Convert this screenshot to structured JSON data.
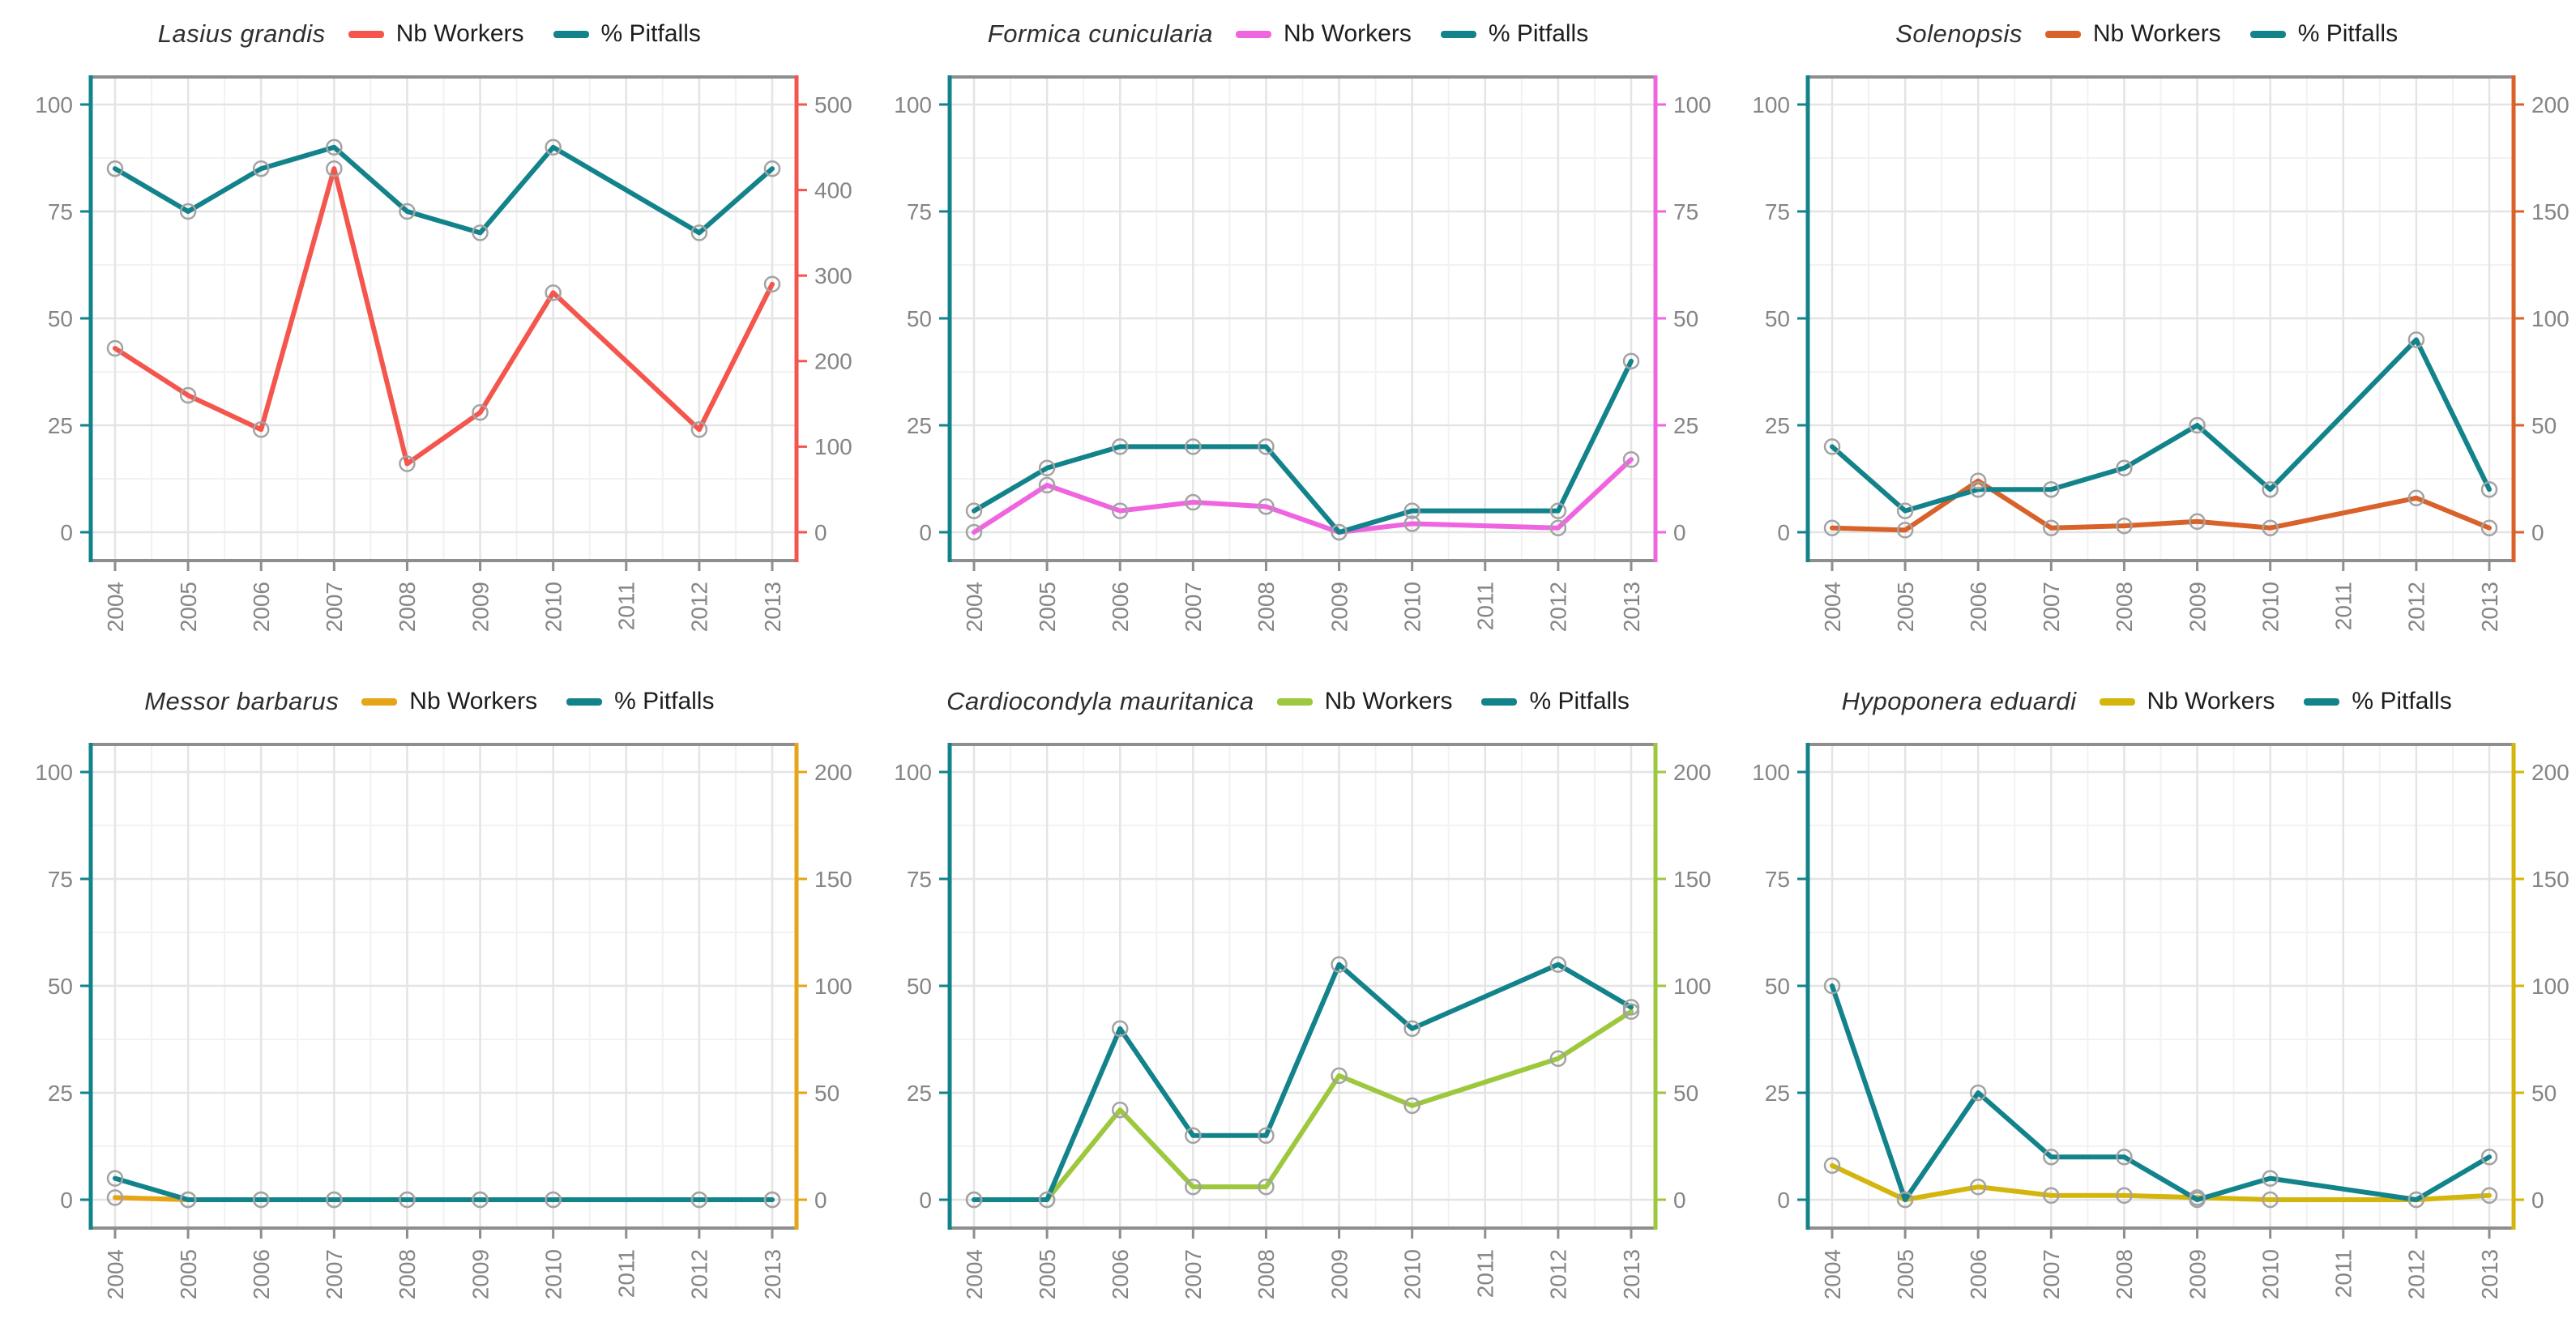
{
  "legend": {
    "nb_workers": "Nb Workers",
    "pitfalls": "% Pitfalls"
  },
  "axes": {
    "x_years": [
      2004,
      2005,
      2006,
      2007,
      2008,
      2009,
      2010,
      2011,
      2012,
      2013
    ],
    "left_ticks": [
      0,
      25,
      50,
      75,
      100
    ],
    "left_range": [
      0,
      100
    ]
  },
  "colors": {
    "pitfalls_teal": "#12838b",
    "axis_gray": "#8e8e8e",
    "tick_text": "#858585",
    "grid_major": "#e4e4e4",
    "grid_minor": "#f2f2f2",
    "marker_stroke": "#a3a3a3",
    "background": "#ffffff"
  },
  "chart_data": [
    {
      "type": "line",
      "title": "Lasius grandis",
      "x": [
        2004,
        2005,
        2006,
        2007,
        2008,
        2009,
        2010,
        2012,
        2013
      ],
      "right_axis": {
        "ticks": [
          0,
          100,
          200,
          300,
          400,
          500
        ],
        "range": [
          0,
          500
        ]
      },
      "series": [
        {
          "name": "Nb Workers",
          "axis": "right",
          "color": "#f4554d",
          "values": [
            215,
            160,
            120,
            425,
            80,
            140,
            280,
            120,
            290
          ]
        },
        {
          "name": "% Pitfalls",
          "axis": "left",
          "color": "#12838b",
          "values": [
            85,
            75,
            85,
            90,
            75,
            70,
            90,
            70,
            85
          ]
        }
      ]
    },
    {
      "type": "line",
      "title": "Formica cunicularia",
      "x": [
        2004,
        2005,
        2006,
        2007,
        2008,
        2009,
        2010,
        2012,
        2013
      ],
      "right_axis": {
        "ticks": [
          0,
          25,
          50,
          75,
          100
        ],
        "range": [
          0,
          100
        ]
      },
      "series": [
        {
          "name": "Nb Workers",
          "axis": "right",
          "color": "#ef65e0",
          "values": [
            0,
            11,
            5,
            7,
            6,
            0,
            2,
            1,
            17
          ]
        },
        {
          "name": "% Pitfalls",
          "axis": "left",
          "color": "#12838b",
          "values": [
            5,
            15,
            20,
            20,
            20,
            0,
            5,
            5,
            40
          ]
        }
      ]
    },
    {
      "type": "line",
      "title": "Solenopsis",
      "x": [
        2004,
        2005,
        2006,
        2007,
        2008,
        2009,
        2010,
        2012,
        2013
      ],
      "right_axis": {
        "ticks": [
          0,
          50,
          100,
          150,
          200
        ],
        "range": [
          0,
          200
        ]
      },
      "series": [
        {
          "name": "Nb Workers",
          "axis": "right",
          "color": "#d8622a",
          "values": [
            2,
            1,
            24,
            2,
            3,
            5,
            2,
            16,
            2
          ]
        },
        {
          "name": "% Pitfalls",
          "axis": "left",
          "color": "#12838b",
          "values": [
            20,
            5,
            10,
            10,
            15,
            25,
            10,
            45,
            10
          ]
        }
      ]
    },
    {
      "type": "line",
      "title": "Messor barbarus",
      "x": [
        2004,
        2005,
        2006,
        2007,
        2008,
        2009,
        2010,
        2012,
        2013
      ],
      "right_axis": {
        "ticks": [
          0,
          50,
          100,
          150,
          200
        ],
        "range": [
          0,
          200
        ]
      },
      "series": [
        {
          "name": "Nb Workers",
          "axis": "right",
          "color": "#e6a417",
          "values": [
            1,
            0,
            0,
            0,
            0,
            0,
            0,
            0,
            0
          ]
        },
        {
          "name": "% Pitfalls",
          "axis": "left",
          "color": "#12838b",
          "values": [
            5,
            0,
            0,
            0,
            0,
            0,
            0,
            0,
            0
          ]
        }
      ]
    },
    {
      "type": "line",
      "title": "Cardiocondyla mauritanica",
      "x": [
        2004,
        2005,
        2006,
        2007,
        2008,
        2009,
        2010,
        2012,
        2013
      ],
      "right_axis": {
        "ticks": [
          0,
          50,
          100,
          150,
          200
        ],
        "range": [
          0,
          200
        ]
      },
      "series": [
        {
          "name": "Nb Workers",
          "axis": "right",
          "color": "#9dc83e",
          "values": [
            0,
            0,
            42,
            6,
            6,
            58,
            44,
            66,
            88
          ]
        },
        {
          "name": "% Pitfalls",
          "axis": "left",
          "color": "#12838b",
          "values": [
            0,
            0,
            40,
            15,
            15,
            55,
            40,
            55,
            45
          ]
        }
      ]
    },
    {
      "type": "line",
      "title": "Hypoponera eduardi",
      "x": [
        2004,
        2005,
        2006,
        2007,
        2008,
        2009,
        2010,
        2012,
        2013
      ],
      "right_axis": {
        "ticks": [
          0,
          50,
          100,
          150,
          200
        ],
        "range": [
          0,
          200
        ]
      },
      "series": [
        {
          "name": "Nb Workers",
          "axis": "right",
          "color": "#d4b50c",
          "values": [
            16,
            0,
            6,
            2,
            2,
            1,
            0,
            0,
            2
          ]
        },
        {
          "name": "% Pitfalls",
          "axis": "left",
          "color": "#12838b",
          "values": [
            50,
            0,
            25,
            10,
            10,
            0,
            5,
            0,
            10
          ]
        }
      ]
    }
  ]
}
